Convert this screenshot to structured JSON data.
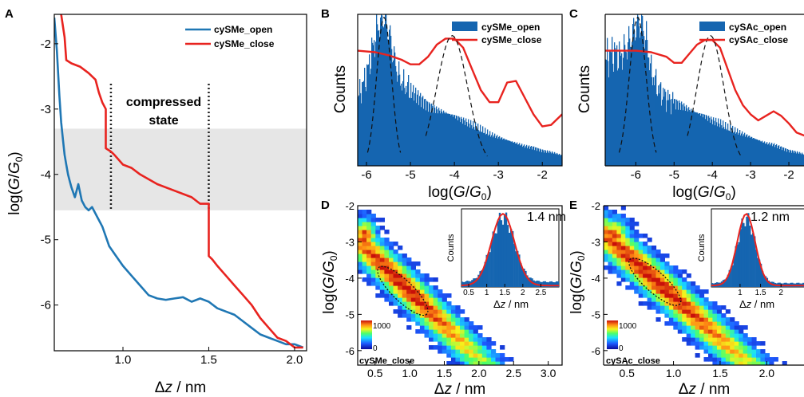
{
  "colors": {
    "open_blue": "#1f77b4",
    "fill_blue": "#1565b0",
    "close_red": "#e8231f",
    "band_gray": "#e6e6e6"
  },
  "chart_data": [
    {
      "panel_letter": "A",
      "type": "line",
      "xlabel": "Δz / nm",
      "ylabel": "log(G/G0)",
      "xlim": [
        0.6,
        2.07
      ],
      "ylim": [
        -6.7,
        -1.55
      ],
      "xticks": [
        "1.0",
        "1.5",
        "2.0"
      ],
      "yticks": [
        "-2",
        "-3",
        "-4",
        "-5",
        "-6"
      ],
      "shaded_band": [
        -4.55,
        -3.3
      ],
      "annotation": "compressed\nstate",
      "dotted_lines_x": [
        0.93,
        1.5
      ],
      "legend_position": "top-right",
      "series": [
        {
          "name": "cySMe_open",
          "color": "#1f77b4",
          "x": [
            0.6,
            0.615,
            0.63,
            0.64,
            0.65,
            0.66,
            0.67,
            0.68,
            0.69,
            0.7,
            0.72,
            0.74,
            0.76,
            0.78,
            0.8,
            0.82,
            0.85,
            0.88,
            0.92,
            0.96,
            1.0,
            1.05,
            1.1,
            1.15,
            1.2,
            1.25,
            1.3,
            1.35,
            1.4,
            1.45,
            1.5,
            1.55,
            1.6,
            1.65,
            1.7,
            1.75,
            1.8,
            1.85,
            1.9,
            1.95,
            2.0,
            2.05
          ],
          "y": [
            -1.6,
            -2.1,
            -2.8,
            -3.2,
            -3.45,
            -3.7,
            -3.85,
            -4.0,
            -4.1,
            -4.2,
            -4.35,
            -4.15,
            -4.4,
            -4.5,
            -4.55,
            -4.5,
            -4.65,
            -4.8,
            -5.1,
            -5.25,
            -5.4,
            -5.55,
            -5.7,
            -5.85,
            -5.9,
            -5.92,
            -5.9,
            -5.88,
            -5.95,
            -5.9,
            -5.95,
            -6.05,
            -6.1,
            -6.15,
            -6.25,
            -6.35,
            -6.45,
            -6.5,
            -6.55,
            -6.6,
            -6.6,
            -6.65
          ]
        },
        {
          "name": "cySMe_close",
          "color": "#e8231f",
          "x": [
            0.64,
            0.66,
            0.67,
            0.7,
            0.75,
            0.8,
            0.84,
            0.86,
            0.88,
            0.9,
            0.9,
            0.93,
            0.95,
            1.0,
            1.05,
            1.1,
            1.2,
            1.3,
            1.4,
            1.45,
            1.5,
            1.5,
            1.52,
            1.55,
            1.6,
            1.65,
            1.7,
            1.75,
            1.8,
            1.85,
            1.9,
            1.95,
            2.0,
            2.05
          ],
          "y": [
            -1.55,
            -1.9,
            -2.25,
            -2.3,
            -2.35,
            -2.45,
            -2.55,
            -2.75,
            -2.9,
            -3.0,
            -3.6,
            -3.65,
            -3.7,
            -3.85,
            -3.9,
            -4.0,
            -4.15,
            -4.25,
            -4.35,
            -4.45,
            -4.45,
            -5.25,
            -5.3,
            -5.4,
            -5.55,
            -5.7,
            -5.85,
            -6.0,
            -6.2,
            -6.35,
            -6.5,
            -6.55,
            -6.65,
            -6.65
          ]
        }
      ]
    },
    {
      "panel_letter": "B",
      "type": "area",
      "xlabel": "log(G/G0)",
      "ylabel": "Counts",
      "xlim": [
        -6.2,
        -1.55
      ],
      "xticks": [
        "-6",
        "-5",
        "-4",
        "-3",
        "-2"
      ],
      "legend_position": "top-right",
      "series": [
        {
          "name": "cySMe_open",
          "kind": "histogram",
          "color": "#1565b0",
          "x": [
            -6.2,
            -6.0,
            -5.8,
            -5.7,
            -5.6,
            -5.5,
            -5.4,
            -5.3,
            -5.2,
            -5.0,
            -4.8,
            -4.6,
            -4.4,
            -4.2,
            -4.0,
            -3.8,
            -3.6,
            -3.4,
            -3.2,
            -3.0,
            -2.8,
            -2.6,
            -2.4,
            -2.2,
            -2.0,
            -1.8,
            -1.55
          ],
          "y": [
            0.45,
            0.6,
            0.85,
            0.95,
            0.99,
            0.9,
            0.75,
            0.62,
            0.55,
            0.5,
            0.45,
            0.4,
            0.37,
            0.35,
            0.33,
            0.3,
            0.27,
            0.24,
            0.21,
            0.19,
            0.17,
            0.15,
            0.13,
            0.12,
            0.1,
            0.09,
            0.07
          ]
        },
        {
          "name": "cySMe_close",
          "kind": "line",
          "color": "#e8231f",
          "x": [
            -6.2,
            -5.8,
            -5.5,
            -5.2,
            -5.0,
            -4.8,
            -4.6,
            -4.4,
            -4.2,
            -4.0,
            -3.8,
            -3.6,
            -3.4,
            -3.2,
            -3.0,
            -2.8,
            -2.6,
            -2.4,
            -2.2,
            -2.0,
            -1.8,
            -1.55
          ],
          "y": [
            0.76,
            0.75,
            0.73,
            0.7,
            0.67,
            0.67,
            0.72,
            0.8,
            0.84,
            0.84,
            0.78,
            0.64,
            0.5,
            0.42,
            0.42,
            0.55,
            0.56,
            0.45,
            0.34,
            0.26,
            0.27,
            0.34
          ]
        }
      ]
    },
    {
      "panel_letter": "C",
      "type": "area",
      "xlabel": "log(G/G0)",
      "ylabel": "Counts",
      "xlim": [
        -6.8,
        -1.5
      ],
      "xticks": [
        "-6",
        "-5",
        "-4",
        "-3",
        "-2"
      ],
      "legend_position": "top-right",
      "series": [
        {
          "name": "cySAc_open",
          "kind": "histogram",
          "color": "#1565b0",
          "x": [
            -6.8,
            -6.6,
            -6.4,
            -6.2,
            -6.0,
            -5.9,
            -5.8,
            -5.7,
            -5.6,
            -5.4,
            -5.2,
            -5.0,
            -4.8,
            -4.6,
            -4.4,
            -4.2,
            -4.0,
            -3.8,
            -3.6,
            -3.4,
            -3.2,
            -3.0,
            -2.8,
            -2.6,
            -2.4,
            -2.2,
            -2.0,
            -1.8,
            -1.5
          ],
          "y": [
            0.7,
            0.75,
            0.72,
            0.8,
            0.92,
            0.95,
            0.9,
            0.8,
            0.62,
            0.5,
            0.45,
            0.42,
            0.4,
            0.37,
            0.35,
            0.33,
            0.3,
            0.28,
            0.25,
            0.23,
            0.21,
            0.19,
            0.17,
            0.15,
            0.14,
            0.12,
            0.1,
            0.09,
            0.07
          ]
        },
        {
          "name": "cySAc_close",
          "kind": "line",
          "color": "#e8231f",
          "x": [
            -6.8,
            -6.4,
            -6.0,
            -5.6,
            -5.2,
            -5.0,
            -4.8,
            -4.6,
            -4.4,
            -4.2,
            -4.0,
            -3.8,
            -3.6,
            -3.4,
            -3.2,
            -3.0,
            -2.8,
            -2.6,
            -2.4,
            -2.2,
            -2.0,
            -1.8,
            -1.6,
            -1.5
          ],
          "y": [
            0.76,
            0.76,
            0.76,
            0.75,
            0.72,
            0.68,
            0.68,
            0.74,
            0.8,
            0.83,
            0.83,
            0.78,
            0.64,
            0.5,
            0.4,
            0.34,
            0.3,
            0.33,
            0.36,
            0.33,
            0.28,
            0.22,
            0.2,
            0.2
          ]
        }
      ]
    },
    {
      "panel_letter": "D",
      "type": "heatmap",
      "xlabel": "Δz / nm",
      "ylabel": "log(G/G0)",
      "xlim": [
        0.25,
        3.2
      ],
      "ylim": [
        -6.4,
        -2.0
      ],
      "xticks": [
        "0.5",
        "1.0",
        "1.5",
        "2.0",
        "2.5",
        "3.0"
      ],
      "yticks": [
        "-2",
        "-3",
        "-4",
        "-5",
        "-6"
      ],
      "colorbar_max": "1000",
      "colorbar_min": "0",
      "corner_label": "cySMe_close",
      "band": {
        "slope": -1.85,
        "intercept": -2.5,
        "center_x": 0.9,
        "center_y": -4.35
      },
      "inset": {
        "type": "bar",
        "annotation": "1.4 nm",
        "ylabel": "Counts",
        "xlabel": "Δz / nm",
        "xlim": [
          0.3,
          3.0
        ],
        "xticks": [
          "0.5",
          "1",
          "1.5",
          "2",
          "2.5"
        ],
        "peak": 1.45,
        "sigma": 0.32,
        "tail": 0.08
      }
    },
    {
      "panel_letter": "E",
      "type": "heatmap",
      "xlabel": "Δz / nm",
      "ylabel": "log(G/G0)",
      "xlim": [
        0.25,
        2.4
      ],
      "ylim": [
        -6.4,
        -2.0
      ],
      "xticks": [
        "0.5",
        "1.0",
        "1.5",
        "2.0"
      ],
      "yticks": [
        "-2",
        "-3",
        "-4",
        "-5",
        "-6"
      ],
      "colorbar_max": "1000",
      "colorbar_min": "0",
      "corner_label": "cySAc_close",
      "band": {
        "slope": -2.3,
        "intercept": -2.2,
        "center_x": 0.8,
        "center_y": -4.1
      },
      "inset": {
        "type": "bar",
        "annotation": "1.2 nm",
        "ylabel": "Counts",
        "xlabel": "Δz / nm",
        "xlim": [
          0.3,
          2.6
        ],
        "xticks": [
          "1",
          "1.5",
          "2"
        ],
        "peak": 1.15,
        "sigma": 0.22,
        "tail": 0.06
      }
    }
  ]
}
